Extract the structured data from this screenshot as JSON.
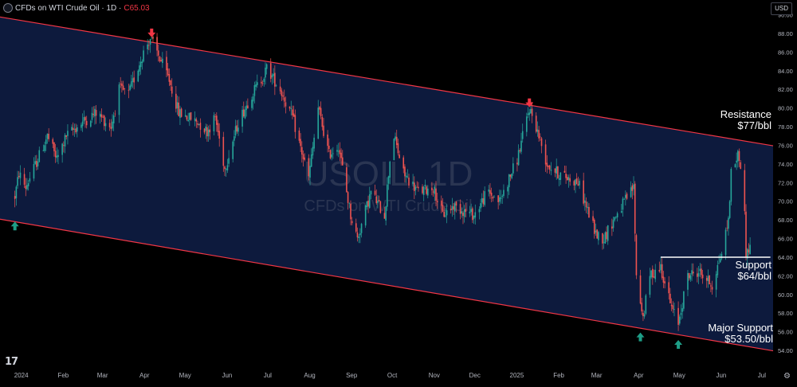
{
  "header": {
    "title": "CFDs on WTI Crude Oil · 1D · ",
    "price_prefix": "C",
    "price": "65.03"
  },
  "currency_label": "USD",
  "watermark": {
    "symbol": "USOIL, 1D",
    "description": "CFDs on WTI Crude Oil"
  },
  "colors": {
    "background": "#000000",
    "channel_fill": "#0d1a3d",
    "channel_line": "#f23645",
    "up_candle": "#26a69a",
    "down_candle": "#ef5350",
    "arrow_up": "#1e9e87",
    "arrow_down": "#f23645",
    "support_line": "#ffffff"
  },
  "chart_data": {
    "type": "candlestick",
    "symbol": "USOIL",
    "timeframe": "1D",
    "x_tick_labels": [
      "2024",
      "Feb",
      "Mar",
      "Apr",
      "May",
      "Jun",
      "Jul",
      "Aug",
      "Sep",
      "Oct",
      "Nov",
      "Dec",
      "2025",
      "Feb",
      "Mar",
      "Apr",
      "May",
      "Jun",
      "Jul"
    ],
    "y_tick_labels": [
      "54.00",
      "56.00",
      "58.00",
      "60.00",
      "62.00",
      "64.00",
      "66.00",
      "68.00",
      "70.00",
      "72.00",
      "74.00",
      "76.00",
      "78.00",
      "80.00",
      "82.00",
      "84.00",
      "86.00",
      "88.00",
      "90.00"
    ],
    "ylim": [
      53.6,
      90.2
    ],
    "price_path": [
      [
        "2024-01-01",
        70.5
      ],
      [
        "2024-01-04",
        73.0
      ],
      [
        "2024-01-09",
        71.5
      ],
      [
        "2024-01-15",
        73.5
      ],
      [
        "2024-01-25",
        77.0
      ],
      [
        "2024-02-01",
        74.5
      ],
      [
        "2024-02-08",
        77.0
      ],
      [
        "2024-02-20",
        78.5
      ],
      [
        "2024-03-01",
        79.5
      ],
      [
        "2024-03-12",
        78.0
      ],
      [
        "2024-03-18",
        82.0
      ],
      [
        "2024-03-25",
        81.5
      ],
      [
        "2024-04-05",
        86.0
      ],
      [
        "2024-04-10",
        87.5
      ],
      [
        "2024-04-18",
        85.0
      ],
      [
        "2024-04-24",
        83.0
      ],
      [
        "2024-05-01",
        79.5
      ],
      [
        "2024-05-08",
        79.0
      ],
      [
        "2024-05-15",
        78.5
      ],
      [
        "2024-05-22",
        77.5
      ],
      [
        "2024-05-28",
        79.0
      ],
      [
        "2024-06-04",
        73.5
      ],
      [
        "2024-06-14",
        78.5
      ],
      [
        "2024-06-24",
        81.5
      ],
      [
        "2024-07-03",
        83.5
      ],
      [
        "2024-07-05",
        84.3
      ],
      [
        "2024-07-15",
        82.0
      ],
      [
        "2024-07-24",
        79.0
      ],
      [
        "2024-08-05",
        72.5
      ],
      [
        "2024-08-12",
        80.0
      ],
      [
        "2024-08-20",
        75.0
      ],
      [
        "2024-08-27",
        76.0
      ],
      [
        "2024-09-05",
        68.5
      ],
      [
        "2024-09-10",
        66.0
      ],
      [
        "2024-09-20",
        71.0
      ],
      [
        "2024-09-30",
        68.5
      ],
      [
        "2024-10-04",
        74.5
      ],
      [
        "2024-10-07",
        77.0
      ],
      [
        "2024-10-14",
        73.0
      ],
      [
        "2024-10-25",
        71.0
      ],
      [
        "2024-11-05",
        71.5
      ],
      [
        "2024-11-12",
        68.5
      ],
      [
        "2024-11-20",
        69.5
      ],
      [
        "2024-12-05",
        68.5
      ],
      [
        "2024-12-15",
        71.0
      ],
      [
        "2024-12-24",
        70.0
      ],
      [
        "2025-01-06",
        74.5
      ],
      [
        "2025-01-15",
        80.0
      ],
      [
        "2025-01-20",
        78.0
      ],
      [
        "2025-01-28",
        74.0
      ],
      [
        "2025-02-05",
        73.0
      ],
      [
        "2025-02-20",
        72.0
      ],
      [
        "2025-03-05",
        66.5
      ],
      [
        "2025-03-11",
        66.0
      ],
      [
        "2025-03-20",
        68.5
      ],
      [
        "2025-04-02",
        71.5
      ],
      [
        "2025-04-04",
        62.0
      ],
      [
        "2025-04-09",
        57.5
      ],
      [
        "2025-04-14",
        62.0
      ],
      [
        "2025-04-22",
        63.0
      ],
      [
        "2025-04-30",
        58.5
      ],
      [
        "2025-05-05",
        57.0
      ],
      [
        "2025-05-12",
        62.0
      ],
      [
        "2025-05-20",
        62.5
      ],
      [
        "2025-05-30",
        61.0
      ],
      [
        "2025-06-06",
        64.5
      ],
      [
        "2025-06-11",
        68.0
      ],
      [
        "2025-06-13",
        73.0
      ],
      [
        "2025-06-18",
        75.0
      ],
      [
        "2025-06-20",
        74.0
      ],
      [
        "2025-06-23",
        68.5
      ],
      [
        "2025-06-24",
        64.5
      ],
      [
        "2025-06-27",
        65.0
      ]
    ],
    "channel": {
      "upper": [
        [
          "2024-01-01",
          89.5
        ],
        [
          "2025-07-12",
          76.0
        ]
      ],
      "lower": [
        [
          "2024-01-01",
          67.8
        ],
        [
          "2025-07-12",
          54.0
        ]
      ]
    },
    "support_level": {
      "value": 64.0,
      "from": "2025-04-22",
      "to": "2025-07-12",
      "label_line1": "Support",
      "label_line2": "$64/bbl"
    },
    "annotations": [
      {
        "text_line1": "Resistance",
        "text_line2": "$77/bbl",
        "date": "2025-06-22",
        "price": 79.0
      },
      {
        "text_line1": "Major Support",
        "text_line2": "$53.50/bbl",
        "date": "2025-06-15",
        "price": 55.8
      }
    ],
    "arrows": [
      {
        "direction": "up",
        "date": "2024-01-01",
        "price": 67.3
      },
      {
        "direction": "down",
        "date": "2024-04-11",
        "price": 88.1
      },
      {
        "direction": "down",
        "date": "2025-01-15",
        "price": 80.6
      },
      {
        "direction": "up",
        "date": "2025-04-07",
        "price": 55.4
      },
      {
        "direction": "up",
        "date": "2025-05-05",
        "price": 54.6
      }
    ],
    "grid": false
  }
}
